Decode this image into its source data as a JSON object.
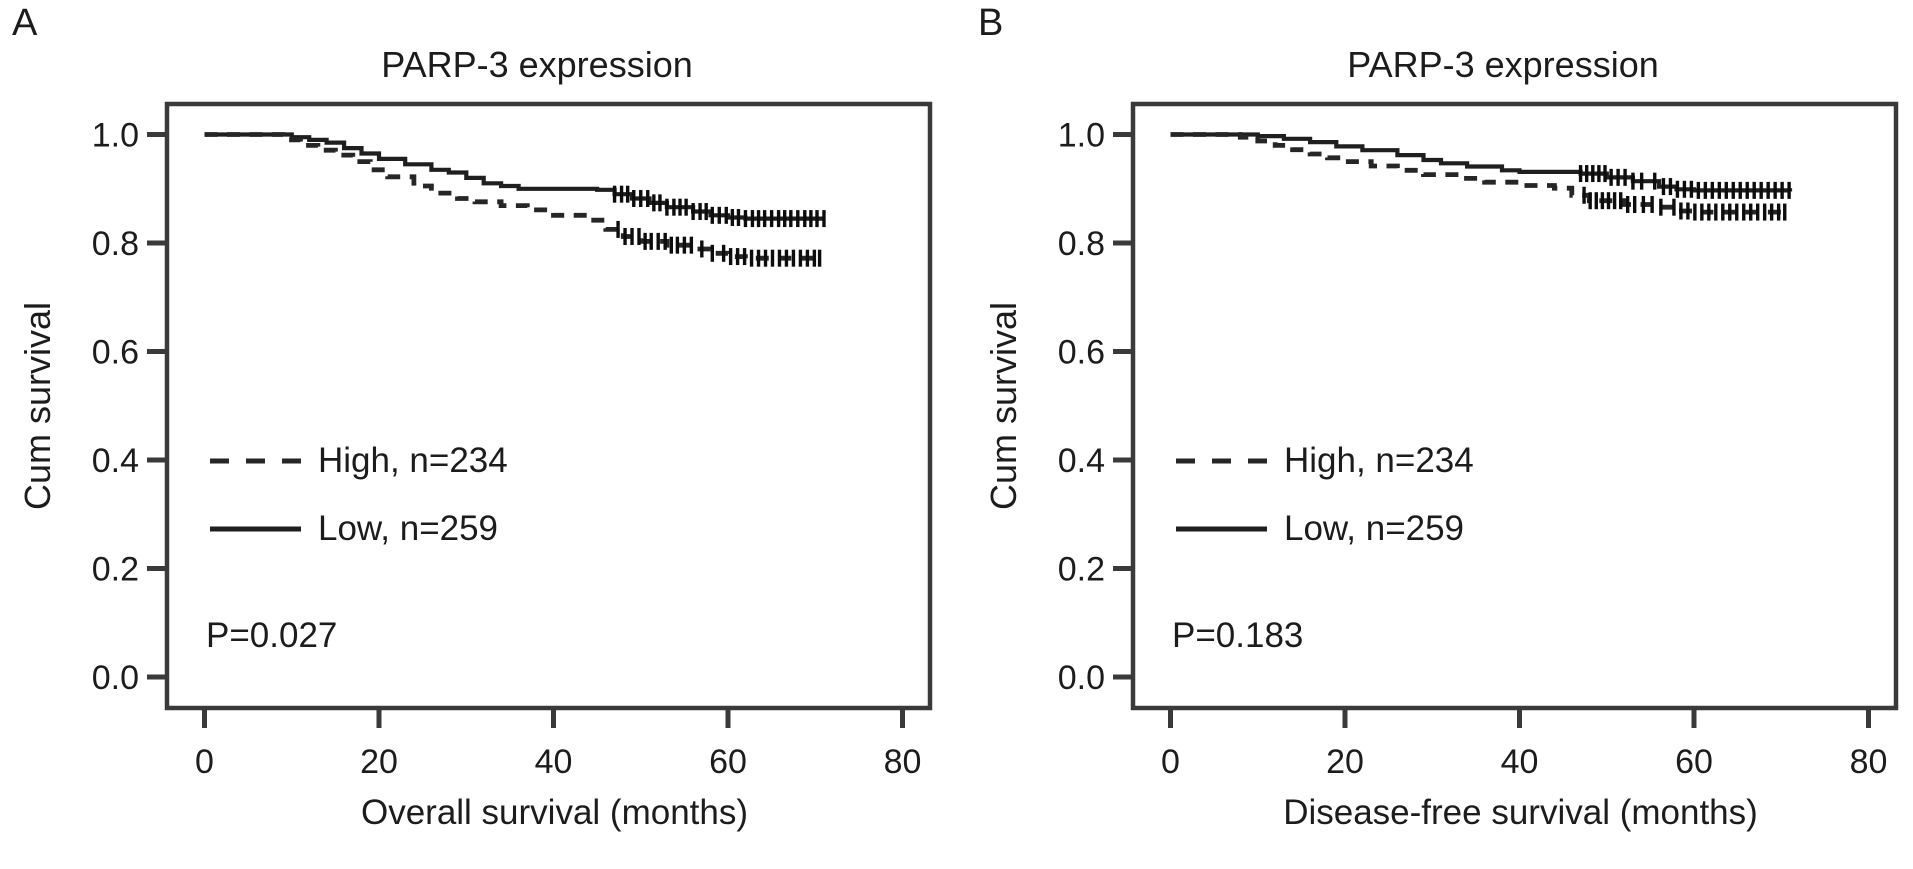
{
  "figure": {
    "background": "#ffffff",
    "ink_color": "#1c1c1c",
    "axis_color": "#3a3a3a",
    "solid_line_color": "#1f1f1f",
    "dashed_line_color": "#262626",
    "censor_mark_color": "#0d0d0d"
  },
  "chart_data": [
    {
      "type": "line",
      "subtype": "kaplan-meier-step",
      "panel_label": "A",
      "title": "PARP-3 expression",
      "xlabel": "Overall survival (months)",
      "ylabel": "Cum survival",
      "p_label": "P=0.027",
      "xticks": [
        0,
        20,
        40,
        60,
        80
      ],
      "ytick_labels": [
        "1.0",
        "0.8",
        "0.6",
        "0.4",
        "0.2",
        "0.0"
      ],
      "xlim": [
        -4.3,
        83.2
      ],
      "ylim": [
        -0.057,
        1.057
      ],
      "grid": false,
      "legend_position": "center-left-inside",
      "legend": [
        {
          "label": "High, n=234",
          "style": "dashed"
        },
        {
          "label": "Low, n=259",
          "style": "solid"
        }
      ],
      "series": [
        {
          "name": "Low, n=259",
          "style": "solid",
          "points": [
            [
              0,
              1.0
            ],
            [
              8,
              1.0
            ],
            [
              10,
              0.995
            ],
            [
              12,
              0.99
            ],
            [
              14,
              0.985
            ],
            [
              16,
              0.975
            ],
            [
              18,
              0.965
            ],
            [
              20,
              0.955
            ],
            [
              23,
              0.945
            ],
            [
              26,
              0.935
            ],
            [
              28,
              0.93
            ],
            [
              30,
              0.92
            ],
            [
              32,
              0.91
            ],
            [
              34,
              0.905
            ],
            [
              36,
              0.9
            ],
            [
              45,
              0.898
            ],
            [
              47,
              0.89
            ],
            [
              49,
              0.882
            ],
            [
              51,
              0.874
            ],
            [
              53,
              0.866
            ],
            [
              56,
              0.858
            ],
            [
              58,
              0.851
            ],
            [
              60,
              0.847
            ],
            [
              62,
              0.845
            ],
            [
              71,
              0.845
            ]
          ],
          "censor_months": [
            47,
            47.8,
            48.5,
            49.2,
            50,
            50.8,
            51.5,
            52.2,
            53,
            53.8,
            54.5,
            55.2,
            56,
            56.8,
            57.5,
            58.2,
            59,
            59.8,
            60.5,
            61.2,
            62,
            62.8,
            63.5,
            64.2,
            65,
            65.8,
            66.5,
            67.2,
            68,
            68.8,
            69.5,
            70.2,
            71
          ]
        },
        {
          "name": "High, n=234",
          "style": "dashed",
          "points": [
            [
              0,
              1.0
            ],
            [
              7,
              1.0
            ],
            [
              9,
              0.99
            ],
            [
              11,
              0.98
            ],
            [
              13,
              0.971
            ],
            [
              15,
              0.962
            ],
            [
              17,
              0.95
            ],
            [
              19,
              0.935
            ],
            [
              21,
              0.922
            ],
            [
              24,
              0.905
            ],
            [
              26,
              0.892
            ],
            [
              29,
              0.882
            ],
            [
              31,
              0.876
            ],
            [
              34,
              0.869
            ],
            [
              37,
              0.861
            ],
            [
              40,
              0.851
            ],
            [
              44,
              0.842
            ],
            [
              46,
              0.825
            ],
            [
              48,
              0.812
            ],
            [
              50,
              0.803
            ],
            [
              53,
              0.796
            ],
            [
              56,
              0.789
            ],
            [
              58,
              0.781
            ],
            [
              60,
              0.775
            ],
            [
              62,
              0.772
            ],
            [
              70.5,
              0.772
            ]
          ],
          "censor_months": [
            47.4,
            48.2,
            49,
            49.8,
            50.5,
            51.2,
            52,
            52.8,
            53.5,
            54.2,
            55,
            55.8,
            57,
            58.2,
            59.5,
            60.3,
            61.1,
            61.9,
            62.7,
            63.5,
            64.3,
            65.1,
            65.9,
            66.7,
            67.5,
            68.3,
            69.1,
            69.9,
            70.5
          ]
        }
      ]
    },
    {
      "type": "line",
      "subtype": "kaplan-meier-step",
      "panel_label": "B",
      "title": "PARP-3 expression",
      "xlabel": "Disease-free survival (months)",
      "ylabel": "Cum survival",
      "p_label": "P=0.183",
      "xticks": [
        0,
        20,
        40,
        60,
        80
      ],
      "ytick_labels": [
        "1.0",
        "0.8",
        "0.6",
        "0.4",
        "0.2",
        "0.0"
      ],
      "xlim": [
        -4.3,
        83.2
      ],
      "ylim": [
        -0.057,
        1.057
      ],
      "grid": false,
      "legend_position": "center-left-inside",
      "legend": [
        {
          "label": "High, n=234",
          "style": "dashed"
        },
        {
          "label": "Low, n=259",
          "style": "solid"
        }
      ],
      "series": [
        {
          "name": "Low, n=259",
          "style": "solid",
          "points": [
            [
              0,
              1.0
            ],
            [
              8,
              1.0
            ],
            [
              10,
              0.997
            ],
            [
              13,
              0.992
            ],
            [
              16,
              0.986
            ],
            [
              19,
              0.978
            ],
            [
              22,
              0.971
            ],
            [
              26,
              0.962
            ],
            [
              29,
              0.953
            ],
            [
              31,
              0.947
            ],
            [
              34,
              0.941
            ],
            [
              38,
              0.934
            ],
            [
              40,
              0.931
            ],
            [
              47,
              0.928
            ],
            [
              50,
              0.921
            ],
            [
              53,
              0.914
            ],
            [
              56,
              0.904
            ],
            [
              58,
              0.899
            ],
            [
              60,
              0.897
            ],
            [
              71,
              0.895
            ]
          ],
          "censor_months": [
            47,
            47.7,
            48.4,
            49.1,
            49.8,
            50.5,
            51.3,
            52.1,
            53,
            54,
            55.5,
            56.5,
            57.3,
            58.1,
            58.9,
            59.7,
            60.5,
            61.3,
            62.1,
            62.9,
            63.7,
            64.5,
            65.3,
            66.1,
            66.9,
            67.7,
            68.5,
            69.3,
            70.1,
            70.9
          ]
        },
        {
          "name": "High, n=234",
          "style": "dashed",
          "points": [
            [
              0,
              1.0
            ],
            [
              6,
              1.0
            ],
            [
              8,
              0.995
            ],
            [
              10,
              0.988
            ],
            [
              12,
              0.98
            ],
            [
              14,
              0.972
            ],
            [
              16,
              0.964
            ],
            [
              18,
              0.957
            ],
            [
              20,
              0.95
            ],
            [
              23,
              0.942
            ],
            [
              26,
              0.934
            ],
            [
              29,
              0.926
            ],
            [
              33,
              0.919
            ],
            [
              36,
              0.912
            ],
            [
              40,
              0.906
            ],
            [
              44,
              0.901
            ],
            [
              46,
              0.888
            ],
            [
              48,
              0.878
            ],
            [
              52,
              0.871
            ],
            [
              56,
              0.866
            ],
            [
              58,
              0.859
            ],
            [
              60,
              0.857
            ],
            [
              70.5,
              0.856
            ]
          ],
          "censor_months": [
            47.4,
            48.1,
            48.8,
            49.5,
            50.2,
            50.9,
            51.6,
            52.4,
            53.2,
            54.2,
            55.2,
            56.2,
            57.7,
            58.5,
            59.3,
            60.1,
            60.9,
            61.7,
            62.5,
            63.3,
            64.1,
            64.9,
            65.7,
            66.5,
            67.3,
            68.1,
            68.9,
            69.7,
            70.4
          ]
        }
      ]
    }
  ]
}
